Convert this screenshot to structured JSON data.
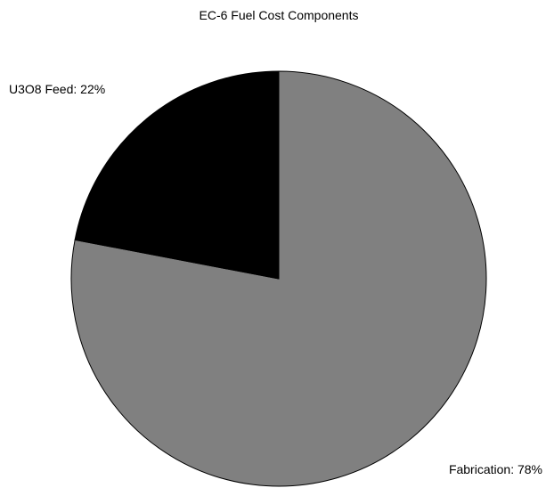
{
  "chart_data": {
    "type": "pie",
    "title": "EC-6 Fuel Cost Components",
    "slices": [
      {
        "label": "Fabrication",
        "value": 78,
        "display": "Fabrication: 78%",
        "color": "#808080"
      },
      {
        "label": "U3O8 Feed",
        "value": 22,
        "display": "U3O8 Feed: 22%",
        "color": "#000000"
      }
    ],
    "start_angle_deg": 90,
    "direction": "clockwise",
    "edge_color": "#000000"
  }
}
